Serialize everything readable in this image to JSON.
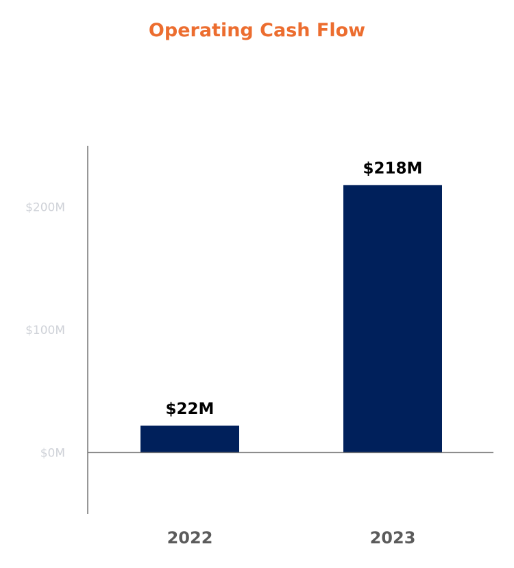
{
  "colors": {
    "title": "#ec6d2f",
    "bar": "#00205b",
    "axis": "#757575",
    "ytick": "#cfd2d8",
    "xtick": "#5b5b5b",
    "data_label": "#000000"
  },
  "chart_data": {
    "type": "bar",
    "title": "Operating Cash Flow",
    "xlabel": "",
    "ylabel": "",
    "categories": [
      "2022",
      "2023"
    ],
    "values": [
      22,
      218
    ],
    "data_labels": [
      "$22M",
      "$218M"
    ],
    "yticks": [
      0,
      100,
      200
    ],
    "ytick_labels": [
      "$0M",
      "$100M",
      "$200M"
    ],
    "ylim": [
      -50,
      250
    ],
    "grid": false,
    "legend": "none"
  }
}
